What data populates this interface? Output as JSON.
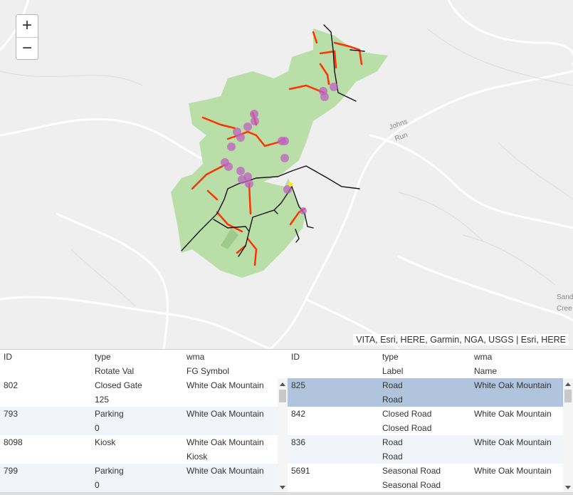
{
  "map": {
    "zoom_in_label": "+",
    "zoom_out_label": "−",
    "attribution": "VITA, Esri, HERE, Garmin, NGA, USGS | Esri, HERE",
    "place_labels": [
      "Johns",
      "Run",
      "Sand",
      "Cree"
    ],
    "colors": {
      "wma_fill": "#b9dea8",
      "trails": "#ff3300",
      "roads": "#111111",
      "points": "#c060c0",
      "water": "#9ec7e0"
    }
  },
  "left_table": {
    "headers": [
      [
        "ID",
        "type",
        "wma"
      ],
      [
        "",
        "Rotate Val",
        "FG Symbol"
      ]
    ],
    "rows": [
      {
        "id": "802",
        "type": "Closed Gate",
        "sub": "125",
        "wma": "White Oak Mountain",
        "sub2": ""
      },
      {
        "id": "793",
        "type": "Parking",
        "sub": "0",
        "wma": "White Oak Mountain",
        "sub2": ""
      },
      {
        "id": "8098",
        "type": "Kiosk",
        "sub": "",
        "wma": "White Oak Mountain",
        "sub2": "Kiosk"
      },
      {
        "id": "799",
        "type": "Parking",
        "sub": "0",
        "wma": "White Oak Mountain",
        "sub2": ""
      }
    ]
  },
  "right_table": {
    "headers": [
      [
        "ID",
        "type",
        "wma"
      ],
      [
        "",
        "Label",
        "Name"
      ]
    ],
    "rows": [
      {
        "id": "825",
        "type": "Road",
        "sub": "Road",
        "wma": "White Oak Mountain"
      },
      {
        "id": "842",
        "type": "Closed Road",
        "sub": "Closed Road",
        "wma": "White Oak Mountain"
      },
      {
        "id": "836",
        "type": "Road",
        "sub": "Road",
        "wma": "White Oak Mountain"
      },
      {
        "id": "5691",
        "type": "Seasonal Road",
        "sub": "Seasonal Road",
        "wma": "White Oak Mountain"
      }
    ]
  }
}
